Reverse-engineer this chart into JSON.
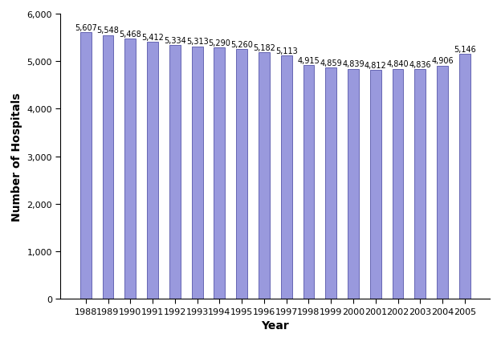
{
  "years": [
    1988,
    1989,
    1990,
    1991,
    1992,
    1993,
    1994,
    1995,
    1996,
    1997,
    1998,
    1999,
    2000,
    2001,
    2002,
    2003,
    2004,
    2005
  ],
  "values": [
    5607,
    5548,
    5468,
    5412,
    5334,
    5313,
    5290,
    5260,
    5182,
    5113,
    4915,
    4859,
    4839,
    4812,
    4840,
    4836,
    4906,
    5146
  ],
  "bar_color": "#9999DD",
  "bar_edgecolor": "#5555AA",
  "xlabel": "Year",
  "ylabel": "Number of Hospitals",
  "ylim": [
    0,
    6000
  ],
  "yticks": [
    0,
    1000,
    2000,
    3000,
    4000,
    5000,
    6000
  ],
  "background_color": "#ffffff",
  "label_fontsize": 7,
  "axis_label_fontsize": 10,
  "tick_fontsize": 8,
  "bar_width": 0.5
}
